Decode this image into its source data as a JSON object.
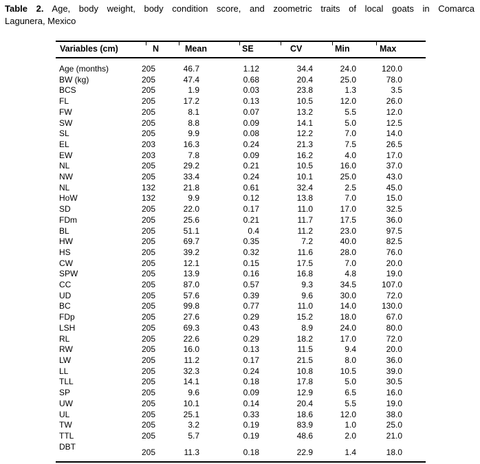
{
  "caption": {
    "label": "Table 2.",
    "line1": "Age, body weight, body condition score, and zoometric traits of local goats in Comarca",
    "line2": "Lagunera, Mexico"
  },
  "table": {
    "columns": [
      "Variables (cm)",
      "N",
      "Mean",
      "SE",
      "CV",
      "Min",
      "Max"
    ],
    "rows": [
      [
        "Age (months)",
        "205",
        "46.7",
        "1.12",
        "34.4",
        "24.0",
        "120.0"
      ],
      [
        "BW (kg)",
        "205",
        "47.4",
        "0.68",
        "20.4",
        "25.0",
        "78.0"
      ],
      [
        "BCS",
        "205",
        "1.9",
        "0.03",
        "23.8",
        "1.3",
        "3.5"
      ],
      [
        "FL",
        "205",
        "17.2",
        "0.13",
        "10.5",
        "12.0",
        "26.0"
      ],
      [
        "FW",
        "205",
        "8.1",
        "0.07",
        "13.2",
        "5.5",
        "12.0"
      ],
      [
        "SW",
        "205",
        "8.8",
        "0.09",
        "14.1",
        "5.0",
        "12.5"
      ],
      [
        "SL",
        "205",
        "9.9",
        "0.08",
        "12.2",
        "7.0",
        "14.0"
      ],
      [
        "EL",
        "203",
        "16.3",
        "0.24",
        "21.3",
        "7.5",
        "26.5"
      ],
      [
        "EW",
        "203",
        "7.8",
        "0.09",
        "16.2",
        "4.0",
        "17.0"
      ],
      [
        "NL",
        "205",
        "29.2",
        "0.21",
        "10.5",
        "16.0",
        "37.0"
      ],
      [
        "NW",
        "205",
        "33.4",
        "0.24",
        "10.1",
        "25.0",
        "43.0"
      ],
      [
        "NL",
        "132",
        "21.8",
        "0.61",
        "32.4",
        "2.5",
        "45.0"
      ],
      [
        "HoW",
        "132",
        "9.9",
        "0.12",
        "13.8",
        "7.0",
        "15.0"
      ],
      [
        "SD",
        "205",
        "22.0",
        "0.17",
        "11.0",
        "17.0",
        "32.5"
      ],
      [
        "FDm",
        "205",
        "25.6",
        "0.21",
        "11.7",
        "17.5",
        "36.0"
      ],
      [
        "BL",
        "205",
        "51.1",
        "0.4",
        "11.2",
        "23.0",
        "97.5"
      ],
      [
        "HW",
        "205",
        "69.7",
        "0.35",
        "7.2",
        "40.0",
        "82.5"
      ],
      [
        "HS",
        "205",
        "39.2",
        "0.32",
        "11.6",
        "28.0",
        "76.0"
      ],
      [
        "CW",
        "205",
        "12.1",
        "0.15",
        "17.5",
        "7.0",
        "20.0"
      ],
      [
        "SPW",
        "205",
        "13.9",
        "0.16",
        "16.8",
        "4.8",
        "19.0"
      ],
      [
        "CC",
        "205",
        "87.0",
        "0.57",
        "9.3",
        "34.5",
        "107.0"
      ],
      [
        "UD",
        "205",
        "57.6",
        "0.39",
        "9.6",
        "30.0",
        "72.0"
      ],
      [
        "BC",
        "205",
        "99.8",
        "0.77",
        "11.0",
        "14.0",
        "130.0"
      ],
      [
        "FDp",
        "205",
        "27.6",
        "0.29",
        "15.2",
        "18.0",
        "67.0"
      ],
      [
        "LSH",
        "205",
        "69.3",
        "0.43",
        "8.9",
        "24.0",
        "80.0"
      ],
      [
        "RL",
        "205",
        "22.6",
        "0.29",
        "18.2",
        "17.0",
        "72.0"
      ],
      [
        "RW",
        "205",
        "16.0",
        "0.13",
        "11.5",
        "9.4",
        "20.0"
      ],
      [
        "LW",
        "205",
        "11.2",
        "0.17",
        "21.5",
        "8.0",
        "36.0"
      ],
      [
        "LL",
        "205",
        "32.3",
        "0.24",
        "10.8",
        "10.5",
        "39.0"
      ],
      [
        "TLL",
        "205",
        "14.1",
        "0.18",
        "17.8",
        "5.0",
        "30.5"
      ],
      [
        "SP",
        "205",
        "9.6",
        "0.09",
        "12.9",
        "6.5",
        "16.0"
      ],
      [
        "UW",
        "205",
        "10.1",
        "0.14",
        "20.4",
        "5.5",
        "19.0"
      ],
      [
        "UL",
        "205",
        "25.1",
        "0.33",
        "18.6",
        "12.0",
        "38.0"
      ],
      [
        "TW",
        "205",
        "3.2",
        "0.19",
        "83.9",
        "1.0",
        "25.0"
      ],
      [
        "TTL",
        "205",
        "5.7",
        "0.19",
        "48.6",
        "2.0",
        "21.0"
      ],
      [
        "DBT",
        "205",
        "11.3",
        "0.18",
        "22.9",
        "1.4",
        "18.0"
      ]
    ]
  }
}
